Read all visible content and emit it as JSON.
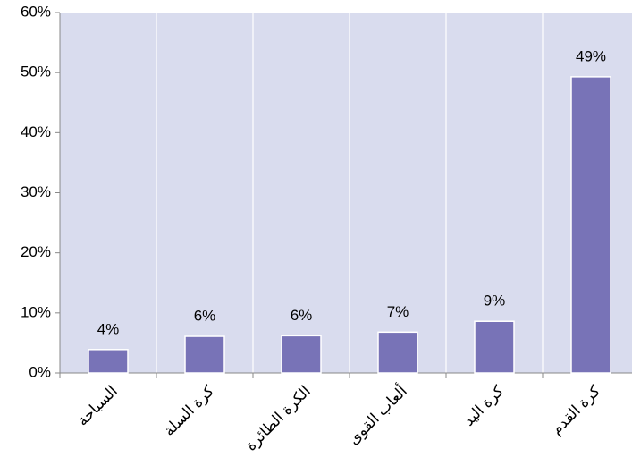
{
  "chart_data": {
    "type": "bar",
    "categories": [
      "السباحة",
      "كرة السلة",
      "الكرة الطائرة",
      "ألعاب القوى",
      "كرة اليد",
      "كرة القدم"
    ],
    "values": [
      3.9,
      6.1,
      6.2,
      6.8,
      8.6,
      49.3
    ],
    "value_labels": [
      "4%",
      "6%",
      "6%",
      "7%",
      "9%",
      "49%"
    ],
    "color": "#7873b7",
    "ylim": [
      0,
      60
    ],
    "yticks": [
      {
        "value": 0,
        "label": "0%"
      },
      {
        "value": 10,
        "label": "10%"
      },
      {
        "value": 20,
        "label": "20%"
      },
      {
        "value": 30,
        "label": "30%"
      },
      {
        "value": 40,
        "label": "40%"
      },
      {
        "value": 50,
        "label": "50%"
      },
      {
        "value": 60,
        "label": "60%"
      }
    ],
    "grid": true
  }
}
